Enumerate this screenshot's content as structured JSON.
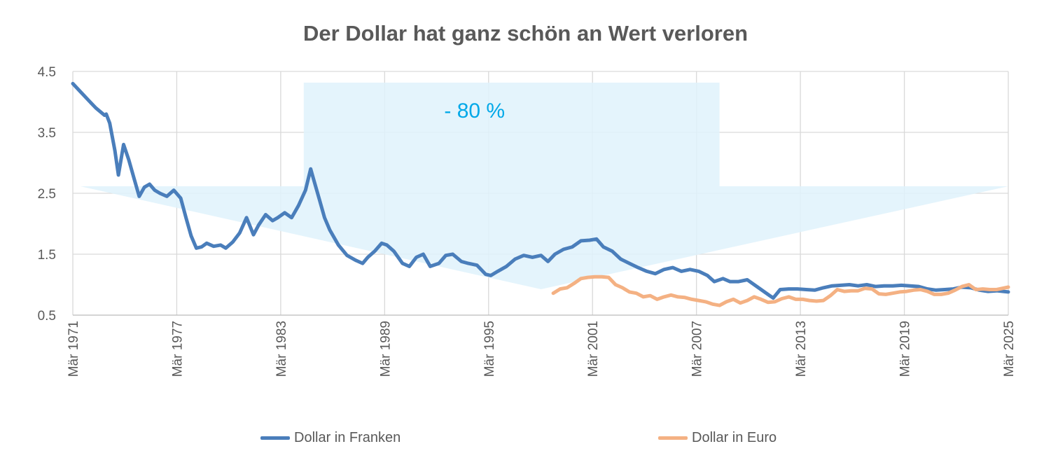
{
  "chart_data": {
    "type": "line",
    "title": "Der Dollar hat ganz schön an Wert verloren",
    "xlabel": "",
    "ylabel": "",
    "xlim": [
      1971.17,
      2025.17
    ],
    "ylim": [
      0.5,
      4.5
    ],
    "y_ticks": [
      "4.5",
      "3.5",
      "2.5",
      "1.5",
      "0.5"
    ],
    "y_tick_values": [
      4.5,
      3.5,
      2.5,
      1.5,
      0.5
    ],
    "x_ticks": [
      "Mär 1971",
      "Mär 1977",
      "Mär 1983",
      "Mär 1989",
      "Mär 1995",
      "Mär 2001",
      "Mär 2007",
      "Mär 2013",
      "Mär 2019",
      "Mär 2025"
    ],
    "x_tick_values": [
      1971.17,
      1977.17,
      1983.17,
      1989.17,
      1995.17,
      2001.17,
      2007.17,
      2013.17,
      2019.17,
      2025.17
    ],
    "grid": true,
    "legend_position": "bottom",
    "annotation": {
      "text": "- 80 %",
      "type": "downward-arrow"
    },
    "series": [
      {
        "name": "Dollar in Franken",
        "color": "#4a7ebb",
        "x": [
          1971.17,
          1971.5,
          1972.0,
          1972.5,
          1973.0,
          1973.1,
          1973.3,
          1973.6,
          1973.8,
          1974.1,
          1974.4,
          1974.7,
          1975.0,
          1975.3,
          1975.6,
          1975.9,
          1976.2,
          1976.6,
          1977.0,
          1977.4,
          1977.7,
          1978.0,
          1978.3,
          1978.6,
          1978.9,
          1979.3,
          1979.7,
          1980.0,
          1980.4,
          1980.8,
          1981.2,
          1981.6,
          1981.9,
          1982.3,
          1982.7,
          1983.0,
          1983.4,
          1983.8,
          1984.2,
          1984.6,
          1984.9,
          1985.1,
          1985.4,
          1985.7,
          1986.0,
          1986.5,
          1987.0,
          1987.5,
          1987.9,
          1988.2,
          1988.6,
          1989.0,
          1989.3,
          1989.7,
          1990.2,
          1990.6,
          1991.0,
          1991.4,
          1991.8,
          1992.3,
          1992.7,
          1993.1,
          1993.6,
          1994.0,
          1994.5,
          1995.0,
          1995.3,
          1995.7,
          1996.2,
          1996.7,
          1997.2,
          1997.7,
          1998.2,
          1998.6,
          1999.0,
          1999.5,
          2000.0,
          2000.5,
          2001.0,
          2001.4,
          2001.8,
          2002.3,
          2002.8,
          2003.3,
          2003.8,
          2004.3,
          2004.8,
          2005.3,
          2005.8,
          2006.3,
          2006.8,
          2007.3,
          2007.8,
          2008.2,
          2008.7,
          2009.1,
          2009.6,
          2010.1,
          2010.6,
          2011.0,
          2011.4,
          2011.6,
          2012.0,
          2012.5,
          2013.0,
          2013.5,
          2014.0,
          2014.5,
          2015.0,
          2015.5,
          2016.0,
          2016.5,
          2017.0,
          2017.5,
          2018.0,
          2018.5,
          2019.0,
          2019.5,
          2020.0,
          2020.5,
          2021.0,
          2021.5,
          2022.0,
          2022.5,
          2023.0,
          2023.5,
          2024.0,
          2024.5,
          2025.17
        ],
        "y": [
          4.3,
          4.2,
          4.05,
          3.9,
          3.78,
          3.8,
          3.65,
          3.2,
          2.8,
          3.3,
          3.05,
          2.75,
          2.45,
          2.6,
          2.65,
          2.55,
          2.5,
          2.45,
          2.55,
          2.42,
          2.1,
          1.8,
          1.6,
          1.62,
          1.68,
          1.63,
          1.65,
          1.6,
          1.7,
          1.85,
          2.1,
          1.82,
          1.98,
          2.15,
          2.05,
          2.1,
          2.18,
          2.1,
          2.3,
          2.55,
          2.9,
          2.7,
          2.4,
          2.1,
          1.9,
          1.65,
          1.48,
          1.4,
          1.35,
          1.45,
          1.55,
          1.68,
          1.65,
          1.55,
          1.35,
          1.3,
          1.45,
          1.5,
          1.3,
          1.35,
          1.48,
          1.5,
          1.38,
          1.35,
          1.32,
          1.17,
          1.15,
          1.22,
          1.3,
          1.42,
          1.48,
          1.45,
          1.48,
          1.38,
          1.5,
          1.58,
          1.62,
          1.72,
          1.73,
          1.75,
          1.62,
          1.55,
          1.42,
          1.35,
          1.28,
          1.22,
          1.18,
          1.25,
          1.28,
          1.22,
          1.25,
          1.22,
          1.15,
          1.05,
          1.1,
          1.05,
          1.05,
          1.08,
          0.98,
          0.9,
          0.82,
          0.78,
          0.92,
          0.93,
          0.93,
          0.92,
          0.91,
          0.95,
          0.98,
          0.99,
          1.0,
          0.98,
          1.0,
          0.97,
          0.98,
          0.98,
          0.99,
          0.98,
          0.97,
          0.93,
          0.91,
          0.92,
          0.93,
          0.96,
          0.95,
          0.91,
          0.89,
          0.9,
          0.88
        ]
      },
      {
        "name": "Dollar in Euro",
        "color": "#f4b183",
        "x": [
          1998.9,
          1999.3,
          1999.7,
          2000.1,
          2000.5,
          2000.9,
          2001.3,
          2001.7,
          2002.1,
          2002.5,
          2002.9,
          2003.3,
          2003.7,
          2004.1,
          2004.5,
          2004.9,
          2005.3,
          2005.7,
          2006.1,
          2006.5,
          2006.9,
          2007.3,
          2007.7,
          2008.1,
          2008.5,
          2008.9,
          2009.3,
          2009.7,
          2010.1,
          2010.5,
          2010.9,
          2011.3,
          2011.7,
          2012.1,
          2012.5,
          2012.9,
          2013.3,
          2013.7,
          2014.1,
          2014.5,
          2014.9,
          2015.3,
          2015.7,
          2016.1,
          2016.5,
          2016.9,
          2017.3,
          2017.7,
          2018.1,
          2018.5,
          2018.9,
          2019.3,
          2019.7,
          2020.1,
          2020.5,
          2020.9,
          2021.3,
          2021.7,
          2022.1,
          2022.5,
          2022.9,
          2023.3,
          2023.7,
          2024.1,
          2024.5,
          2025.17
        ],
        "y": [
          0.86,
          0.93,
          0.95,
          1.02,
          1.1,
          1.12,
          1.13,
          1.13,
          1.12,
          1.0,
          0.95,
          0.88,
          0.86,
          0.8,
          0.82,
          0.76,
          0.8,
          0.83,
          0.8,
          0.79,
          0.76,
          0.74,
          0.72,
          0.68,
          0.66,
          0.72,
          0.76,
          0.7,
          0.74,
          0.8,
          0.76,
          0.71,
          0.72,
          0.77,
          0.8,
          0.76,
          0.76,
          0.74,
          0.73,
          0.74,
          0.82,
          0.92,
          0.89,
          0.9,
          0.9,
          0.94,
          0.93,
          0.85,
          0.84,
          0.86,
          0.88,
          0.89,
          0.91,
          0.92,
          0.89,
          0.84,
          0.84,
          0.86,
          0.91,
          0.97,
          1.0,
          0.92,
          0.93,
          0.92,
          0.92,
          0.96
        ]
      }
    ]
  }
}
